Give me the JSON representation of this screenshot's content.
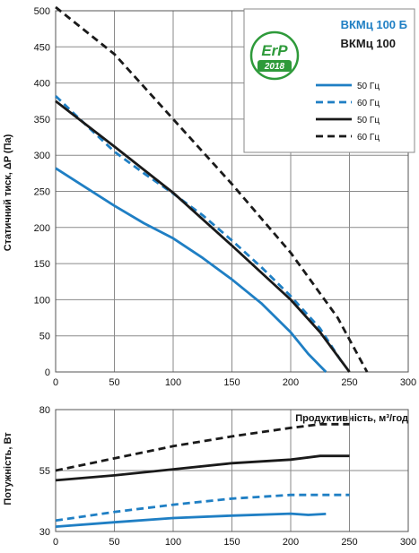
{
  "colors": {
    "blue": "#1f7fc4",
    "black": "#1a1a1a",
    "erp_green": "#2e9a3a",
    "grid": "#8a8a8a"
  },
  "legend": {
    "model_blue": "ВКМц 100 Б",
    "model_black": "ВКМц 100",
    "entries": [
      {
        "label": "50 Гц",
        "color": "#1f7fc4",
        "dashed": false
      },
      {
        "label": "60 Гц",
        "color": "#1f7fc4",
        "dashed": true
      },
      {
        "label": "50 Гц",
        "color": "#1a1a1a",
        "dashed": false
      },
      {
        "label": "60 Гц",
        "color": "#1a1a1a",
        "dashed": true
      }
    ]
  },
  "erp_badge": {
    "text": "ErP",
    "year": "2018"
  },
  "chart_data": [
    {
      "type": "line",
      "ylabel": "Статичний тиск, ΔP (Па)",
      "xlabel": "Продуктивність, м³/год",
      "xlim": [
        0,
        300
      ],
      "ylim": [
        0,
        500
      ],
      "xticks": [
        0,
        50,
        100,
        150,
        200,
        250,
        300
      ],
      "yticks": [
        0,
        50,
        100,
        150,
        200,
        250,
        300,
        350,
        400,
        450,
        500
      ],
      "grid": true,
      "legend_position": "top-right",
      "series": [
        {
          "name": "ВКМц 100 Б 50 Гц",
          "color": "#1f7fc4",
          "dashed": false,
          "x": [
            0,
            25,
            50,
            75,
            100,
            125,
            150,
            175,
            200,
            215,
            230
          ],
          "y": [
            282,
            256,
            230,
            206,
            185,
            158,
            128,
            95,
            55,
            25,
            0
          ]
        },
        {
          "name": "ВКМц 100 Б 60 Гц",
          "color": "#1f7fc4",
          "dashed": true,
          "x": [
            0,
            25,
            50,
            75,
            100,
            125,
            150,
            175,
            200,
            225,
            245
          ],
          "y": [
            382,
            343,
            305,
            275,
            247,
            217,
            182,
            145,
            105,
            60,
            10
          ]
        },
        {
          "name": "ВКМц 100 50 Гц",
          "color": "#1a1a1a",
          "dashed": false,
          "x": [
            0,
            50,
            100,
            150,
            200,
            225,
            250
          ],
          "y": [
            375,
            312,
            248,
            175,
            100,
            55,
            0
          ]
        },
        {
          "name": "ВКМц 100 60 Гц",
          "color": "#1a1a1a",
          "dashed": true,
          "x": [
            0,
            50,
            100,
            150,
            200,
            240,
            265
          ],
          "y": [
            505,
            440,
            350,
            260,
            165,
            75,
            0
          ]
        }
      ]
    },
    {
      "type": "line",
      "ylabel": "Потужність, Вт",
      "xlim": [
        0,
        300
      ],
      "ylim": [
        30,
        80
      ],
      "xticks": [
        0,
        50,
        100,
        150,
        200,
        250,
        300
      ],
      "yticks": [
        30,
        55,
        80
      ],
      "grid": true,
      "series": [
        {
          "name": "ВКМц 100 Б 50 Гц",
          "color": "#1f7fc4",
          "dashed": false,
          "x": [
            0,
            50,
            100,
            150,
            200,
            215,
            230
          ],
          "y": [
            32,
            33.8,
            35.5,
            36.5,
            37.3,
            36.8,
            37.2
          ]
        },
        {
          "name": "ВКМц 100 Б 60 Гц",
          "color": "#1f7fc4",
          "dashed": true,
          "x": [
            0,
            50,
            100,
            150,
            200,
            250
          ],
          "y": [
            34.5,
            38,
            41,
            43.5,
            45,
            45
          ]
        },
        {
          "name": "ВКМц 100 50 Гц",
          "color": "#1a1a1a",
          "dashed": false,
          "x": [
            0,
            50,
            100,
            150,
            200,
            225,
            250
          ],
          "y": [
            51,
            53,
            55.5,
            58,
            59.5,
            61,
            61
          ]
        },
        {
          "name": "ВКМц 100 60 Гц",
          "color": "#1a1a1a",
          "dashed": true,
          "x": [
            0,
            50,
            100,
            150,
            200,
            225,
            250
          ],
          "y": [
            55,
            60,
            65,
            69,
            72.5,
            74,
            74
          ]
        }
      ]
    }
  ]
}
